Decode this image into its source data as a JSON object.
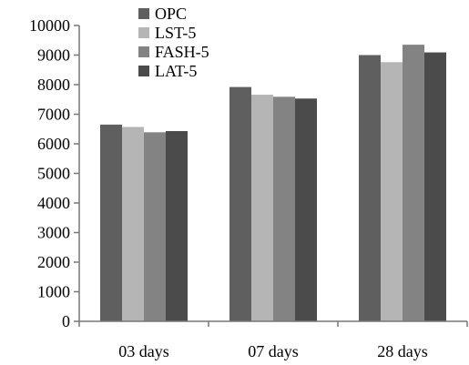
{
  "chart_data": {
    "type": "bar",
    "title": "",
    "xlabel": "",
    "ylabel": "",
    "categories": [
      "03 days",
      "07 days",
      "28 days"
    ],
    "ylim": [
      0,
      10000
    ],
    "yticks": [
      0,
      1000,
      2000,
      3000,
      4000,
      5000,
      6000,
      7000,
      8000,
      9000,
      10000
    ],
    "grid": false,
    "legend_position": "top-left",
    "series": [
      {
        "name": "OPC",
        "color": "#5f5f5f",
        "values": [
          6650,
          7920,
          9000
        ]
      },
      {
        "name": "LST-5",
        "color": "#b5b5b5",
        "values": [
          6570,
          7660,
          8760
        ]
      },
      {
        "name": "FASH-5",
        "color": "#838383",
        "values": [
          6390,
          7590,
          9350
        ]
      },
      {
        "name": "LAT-5",
        "color": "#4b4b4b",
        "values": [
          6430,
          7530,
          9090
        ]
      }
    ]
  }
}
